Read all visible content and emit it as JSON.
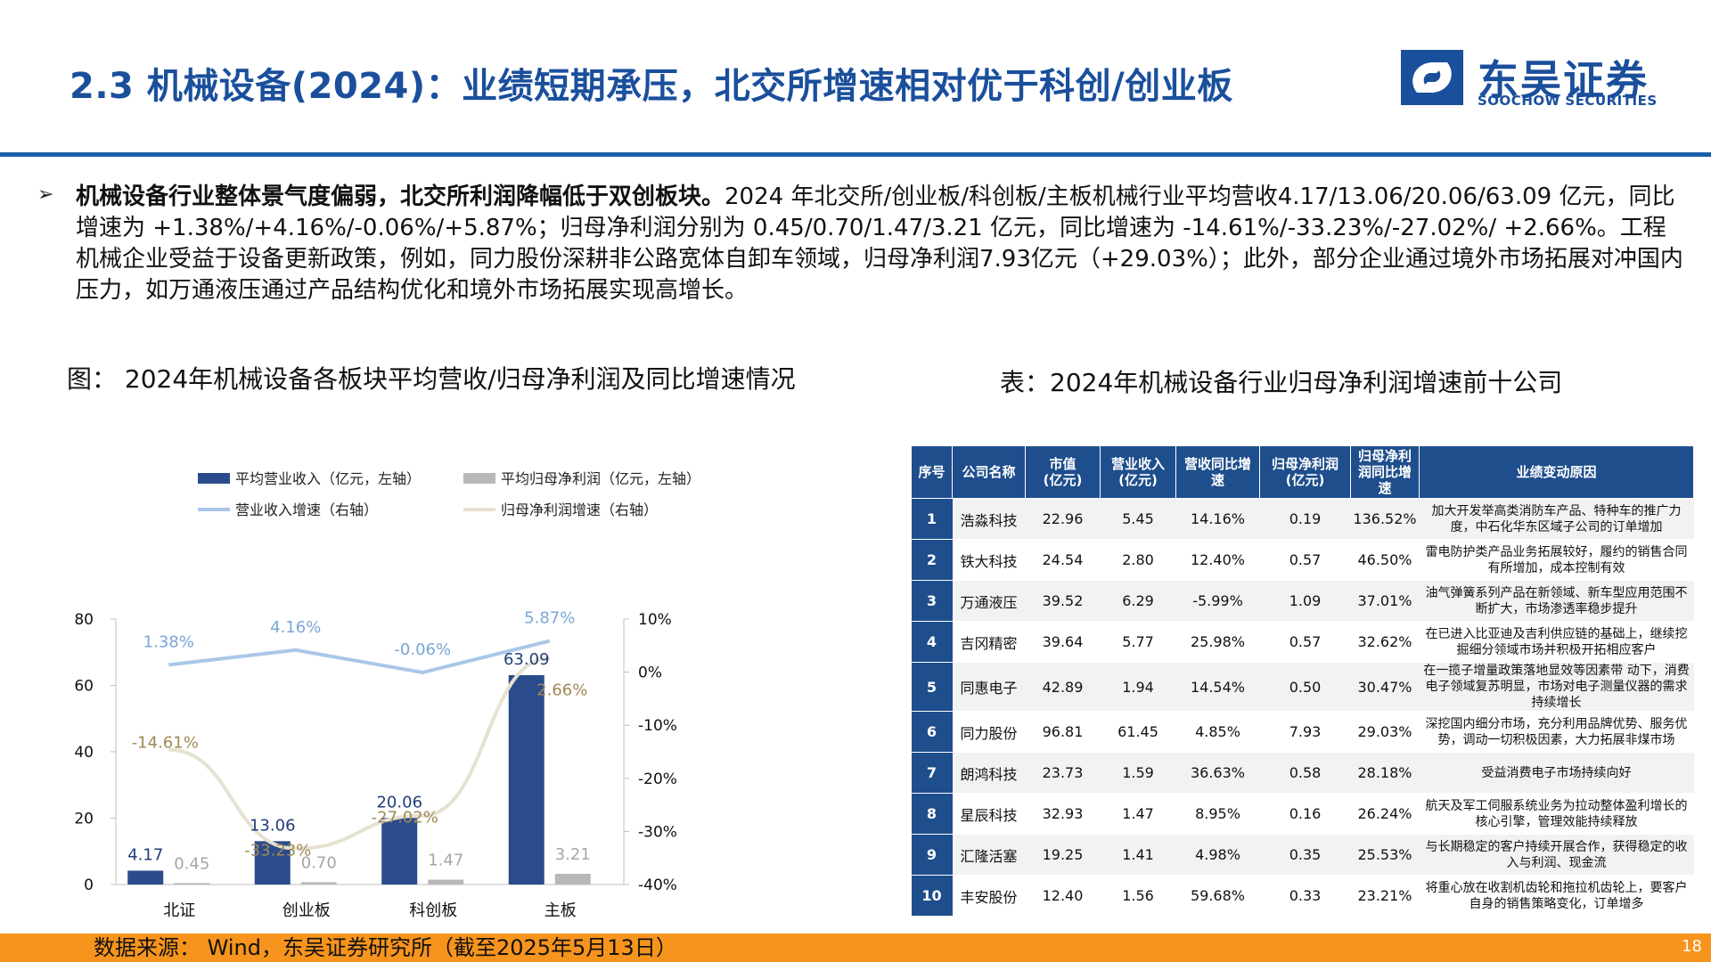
{
  "header": {
    "title": "2.3 机械设备(2024)：业绩短期承压，北交所增速相对优于科创/创业板",
    "logo_cn": "东吴证券",
    "logo_en": "SOOCHOW SECURITIES"
  },
  "body": {
    "bullet": "➢",
    "para_bold": "机械设备行业整体景气度偏弱，北交所利润降幅低于双创板块。",
    "para_text": "2024 年北交所/创业板/科创板/主板机械行业平均营收4.17/13.06/20.06/63.09 亿元，同比增速为 +1.38%/+4.16%/-0.06%/+5.87%；归母净利润分别为 0.45/0.70/1.47/3.21 亿元，同比增速为 -14.61%/-33.23%/-27.02%/ +2.66%。工程机械企业受益于设备更新政策，例如，同力股份深耕非公路宽体自卸车领域，归母净利润7.93亿元（+29.03%）；此外，部分企业通过境外市场拓展对冲国内压力，如万通液压通过产品结构优化和境外市场拓展实现高增长。"
  },
  "figure_title": "图： 2024年机械设备各板块平均营收/归母净利润及同比增速情况",
  "table_title": "表：2024年机械设备行业归母净利润增速前十公司",
  "chart_data": {
    "type": "bar",
    "categories": [
      "北证",
      "创业板",
      "科创板",
      "主板"
    ],
    "series": [
      {
        "name": "平均营业收入（亿元，左轴）",
        "kind": "bar",
        "axis": "left",
        "values": [
          4.17,
          13.06,
          20.06,
          63.09
        ],
        "labels": [
          "4.17",
          "13.06",
          "20.06",
          "63.09"
        ],
        "color": "#2b4c8c",
        "label_color": "#1f3f7a"
      },
      {
        "name": "平均归母净利润（亿元，左轴）",
        "kind": "bar",
        "axis": "left",
        "values": [
          0.45,
          0.7,
          1.47,
          3.21
        ],
        "labels": [
          "0.45",
          "0.70",
          "1.47",
          "3.21"
        ],
        "color": "#b8b8b8",
        "label_color": "#a6a6a6"
      },
      {
        "name": "营业收入增速（右轴）",
        "kind": "line",
        "axis": "right",
        "values": [
          1.38,
          4.16,
          -0.06,
          5.87
        ],
        "labels": [
          "1.38%",
          "4.16%",
          "-0.06%",
          "5.87%"
        ],
        "color": "#a9c7e8",
        "label_color": "#7aa6d6"
      },
      {
        "name": "归母净利润增速（右轴）",
        "kind": "line",
        "axis": "right",
        "values": [
          -14.61,
          -33.23,
          -27.02,
          2.66
        ],
        "labels": [
          "-14.61%",
          "-33.23%",
          "-27.02%",
          "2.66%"
        ],
        "color": "#e6e1d2",
        "label_color": "#a08a55"
      }
    ],
    "y_left": {
      "min": 0,
      "max": 80,
      "ticks": [
        "0",
        "20",
        "40",
        "60",
        "80"
      ]
    },
    "y_right": {
      "min": -40,
      "max": 10,
      "ticks": [
        "-40%",
        "-30%",
        "-20%",
        "-10%",
        "0%",
        "10%"
      ]
    },
    "legend_position": "top",
    "grid": false
  },
  "table": {
    "headers": [
      "序号",
      "公司名称",
      "市值\n(亿元)",
      "营业收入\n(亿元)",
      "营收同比增\n速",
      "归母净利润\n(亿元)",
      "归母净利\n润同比增\n速",
      "业绩变动原因"
    ],
    "rows": [
      [
        "1",
        "浩淼科技",
        "22.96",
        "5.45",
        "14.16%",
        "0.19",
        "136.52%",
        "加大开发举高类消防车产品、特种车的推广力度，中石化华东区域子公司的订单增加"
      ],
      [
        "2",
        "铁大科技",
        "24.54",
        "2.80",
        "12.40%",
        "0.57",
        "46.50%",
        "雷电防护类产品业务拓展较好，履约的销售合同有所增加，成本控制有效"
      ],
      [
        "3",
        "万通液压",
        "39.52",
        "6.29",
        "-5.99%",
        "1.09",
        "37.01%",
        "油气弹簧系列产品在新领域、新车型应用范围不断扩大，市场渗透率稳步提升"
      ],
      [
        "4",
        "吉冈精密",
        "39.64",
        "5.77",
        "25.98%",
        "0.57",
        "32.62%",
        "在已进入比亚迪及吉利供应链的基础上，继续挖掘细分领域市场并积极开拓相应客户"
      ],
      [
        "5",
        "同惠电子",
        "42.89",
        "1.94",
        "14.54%",
        "0.50",
        "30.47%",
        "在一揽子增量政策落地显效等因素带 动下，消费电子领域复苏明显，市场对电子测量仪器的需求持续增长"
      ],
      [
        "6",
        "同力股份",
        "96.81",
        "61.45",
        "4.85%",
        "7.93",
        "29.03%",
        "深挖国内细分市场，充分利用品牌优势、服务优势，调动一切积极因素，大力拓展非煤市场"
      ],
      [
        "7",
        "朗鸿科技",
        "23.73",
        "1.59",
        "36.63%",
        "0.58",
        "28.18%",
        "受益消费电子市场持续向好"
      ],
      [
        "8",
        "星辰科技",
        "32.93",
        "1.47",
        "8.95%",
        "0.16",
        "26.24%",
        "航天及军工伺服系统业务为拉动整体盈利增长的核心引擎，管理效能持续释放"
      ],
      [
        "9",
        "汇隆活塞",
        "19.25",
        "1.41",
        "4.98%",
        "0.35",
        "25.53%",
        "与长期稳定的客户持续开展合作，获得稳定的收入与利润、现金流"
      ],
      [
        "10",
        "丰安股份",
        "12.40",
        "1.56",
        "59.68%",
        "0.33",
        "23.21%",
        "将重心放在收割机齿轮和拖拉机齿轮上，要客户自身的销售策略变化，订单增多"
      ]
    ]
  },
  "footer": {
    "source": "数据来源： Wind，东吴证券研究所（截至2025年5月13日）",
    "page": "18"
  },
  "colors": {
    "brand": "#1a4f9c",
    "rule": "#1a5fa8",
    "table_header": "#1f4e8c",
    "footer_bar": "#f7941d"
  }
}
